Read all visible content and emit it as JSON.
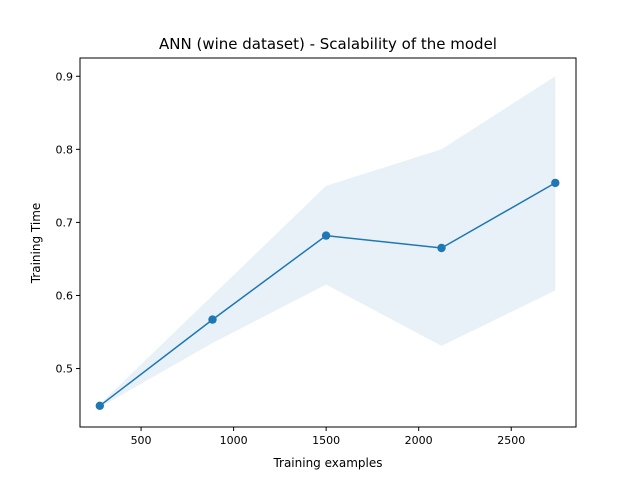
{
  "chart_data": {
    "type": "line",
    "title": "ANN (wine dataset) - Scalability of the model",
    "xlabel": "Training examples",
    "ylabel": "Training Time",
    "xlim": [
      170,
      2850
    ],
    "ylim": [
      0.42,
      0.925
    ],
    "xticks": [
      500,
      1000,
      1500,
      2000,
      2500
    ],
    "yticks": [
      0.5,
      0.6,
      0.7,
      0.8,
      0.9
    ],
    "grid": false,
    "series": [
      {
        "x": [
          277,
          886,
          1500,
          2123,
          2738
        ],
        "values": [
          0.449,
          0.567,
          0.682,
          0.665,
          0.754
        ],
        "lower": [
          0.447,
          0.535,
          0.615,
          0.531,
          0.607
        ],
        "upper": [
          0.451,
          0.6,
          0.75,
          0.8,
          0.9
        ],
        "color": "#1f77b4",
        "band_color": "#1f77b4"
      }
    ]
  }
}
